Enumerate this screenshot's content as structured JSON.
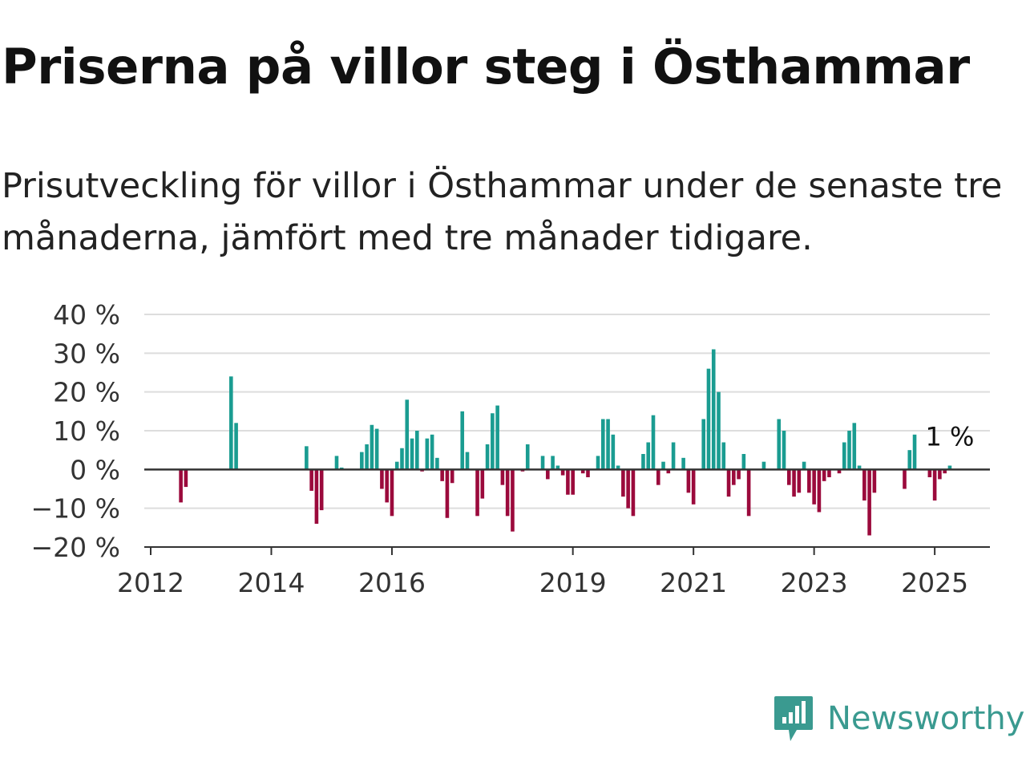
{
  "header": {
    "title": "Priserna på villor steg i Östhammar",
    "subtitle": "Prisutveckling för villor i Östhammar under de senaste tre månaderna, jämfört med tre månader tidigare."
  },
  "brand": {
    "name": "Newsworthy",
    "icon": "newsworthy-logo-icon"
  },
  "colors": {
    "positive": "#1a9c91",
    "negative": "#9b0a3c",
    "grid": "#dddddd",
    "axis": "#333333"
  },
  "chart_data": {
    "type": "bar",
    "title": "",
    "xlabel": "",
    "ylabel": "",
    "ylim": [
      -20,
      40
    ],
    "y_ticks": [
      "40 %",
      "30 %",
      "20 %",
      "10 %",
      "0 %",
      "−10 %",
      "−20 %"
    ],
    "y_tick_values": [
      40,
      30,
      20,
      10,
      0,
      -10,
      -20
    ],
    "x_ticks": [
      "2012",
      "2014",
      "2016",
      "2019",
      "2021",
      "2023",
      "2025"
    ],
    "x_tick_dates": [
      "2012-01",
      "2014-01",
      "2016-01",
      "2019-01",
      "2021-01",
      "2023-01",
      "2025-01"
    ],
    "grid": true,
    "annotation": {
      "text": "1 %",
      "date": "2025-04",
      "value": 1
    },
    "series": [
      {
        "points": [
          {
            "date": "2012-07",
            "value": -8.5
          },
          {
            "date": "2012-08",
            "value": -4.5
          },
          {
            "date": "2013-05",
            "value": 24
          },
          {
            "date": "2013-06",
            "value": 12
          },
          {
            "date": "2014-08",
            "value": 6
          },
          {
            "date": "2014-09",
            "value": -5.5
          },
          {
            "date": "2014-10",
            "value": -14
          },
          {
            "date": "2014-11",
            "value": -10.5
          },
          {
            "date": "2015-02",
            "value": 3.5
          },
          {
            "date": "2015-03",
            "value": 0.5
          },
          {
            "date": "2015-07",
            "value": 4.5
          },
          {
            "date": "2015-08",
            "value": 6.5
          },
          {
            "date": "2015-09",
            "value": 11.5
          },
          {
            "date": "2015-10",
            "value": 10.5
          },
          {
            "date": "2015-11",
            "value": -5
          },
          {
            "date": "2015-12",
            "value": -8.5
          },
          {
            "date": "2016-01",
            "value": -12
          },
          {
            "date": "2016-02",
            "value": 2
          },
          {
            "date": "2016-03",
            "value": 5.5
          },
          {
            "date": "2016-04",
            "value": 18
          },
          {
            "date": "2016-05",
            "value": 8
          },
          {
            "date": "2016-06",
            "value": 10
          },
          {
            "date": "2016-07",
            "value": -0.5
          },
          {
            "date": "2016-08",
            "value": 8
          },
          {
            "date": "2016-09",
            "value": 9
          },
          {
            "date": "2016-10",
            "value": 3
          },
          {
            "date": "2016-11",
            "value": -3
          },
          {
            "date": "2016-12",
            "value": -12.5
          },
          {
            "date": "2017-01",
            "value": -3.5
          },
          {
            "date": "2017-03",
            "value": 15
          },
          {
            "date": "2017-04",
            "value": 4.5
          },
          {
            "date": "2017-06",
            "value": -12
          },
          {
            "date": "2017-07",
            "value": -7.5
          },
          {
            "date": "2017-08",
            "value": 6.5
          },
          {
            "date": "2017-09",
            "value": 14.5
          },
          {
            "date": "2017-10",
            "value": 16.5
          },
          {
            "date": "2017-11",
            "value": -4
          },
          {
            "date": "2017-12",
            "value": -12
          },
          {
            "date": "2018-01",
            "value": -16
          },
          {
            "date": "2018-03",
            "value": -0.5
          },
          {
            "date": "2018-04",
            "value": 6.5
          },
          {
            "date": "2018-07",
            "value": 3.5
          },
          {
            "date": "2018-08",
            "value": -2.5
          },
          {
            "date": "2018-09",
            "value": 3.5
          },
          {
            "date": "2018-10",
            "value": 1
          },
          {
            "date": "2018-11",
            "value": -1.5
          },
          {
            "date": "2018-12",
            "value": -6.5
          },
          {
            "date": "2019-01",
            "value": -6.5
          },
          {
            "date": "2019-03",
            "value": -1
          },
          {
            "date": "2019-04",
            "value": -2
          },
          {
            "date": "2019-06",
            "value": 3.5
          },
          {
            "date": "2019-07",
            "value": 13
          },
          {
            "date": "2019-08",
            "value": 13
          },
          {
            "date": "2019-09",
            "value": 9
          },
          {
            "date": "2019-10",
            "value": 1
          },
          {
            "date": "2019-11",
            "value": -7
          },
          {
            "date": "2019-12",
            "value": -10
          },
          {
            "date": "2020-01",
            "value": -12
          },
          {
            "date": "2020-03",
            "value": 4
          },
          {
            "date": "2020-04",
            "value": 7
          },
          {
            "date": "2020-05",
            "value": 14
          },
          {
            "date": "2020-06",
            "value": -4
          },
          {
            "date": "2020-07",
            "value": 2
          },
          {
            "date": "2020-08",
            "value": -1
          },
          {
            "date": "2020-09",
            "value": 7
          },
          {
            "date": "2020-11",
            "value": 3
          },
          {
            "date": "2020-12",
            "value": -6
          },
          {
            "date": "2021-01",
            "value": -9
          },
          {
            "date": "2021-03",
            "value": 13
          },
          {
            "date": "2021-04",
            "value": 26
          },
          {
            "date": "2021-05",
            "value": 31
          },
          {
            "date": "2021-06",
            "value": 20
          },
          {
            "date": "2021-07",
            "value": 7
          },
          {
            "date": "2021-08",
            "value": -7
          },
          {
            "date": "2021-09",
            "value": -4
          },
          {
            "date": "2021-10",
            "value": -2.5
          },
          {
            "date": "2021-11",
            "value": 4
          },
          {
            "date": "2021-12",
            "value": -12
          },
          {
            "date": "2022-03",
            "value": 2
          },
          {
            "date": "2022-06",
            "value": 13
          },
          {
            "date": "2022-07",
            "value": 10
          },
          {
            "date": "2022-08",
            "value": -4
          },
          {
            "date": "2022-09",
            "value": -7
          },
          {
            "date": "2022-10",
            "value": -6
          },
          {
            "date": "2022-11",
            "value": 2
          },
          {
            "date": "2022-12",
            "value": -6
          },
          {
            "date": "2023-01",
            "value": -9
          },
          {
            "date": "2023-02",
            "value": -11
          },
          {
            "date": "2023-03",
            "value": -3
          },
          {
            "date": "2023-04",
            "value": -2
          },
          {
            "date": "2023-06",
            "value": -1
          },
          {
            "date": "2023-07",
            "value": 7
          },
          {
            "date": "2023-08",
            "value": 10
          },
          {
            "date": "2023-09",
            "value": 12
          },
          {
            "date": "2023-10",
            "value": 1
          },
          {
            "date": "2023-11",
            "value": -8
          },
          {
            "date": "2023-12",
            "value": -17
          },
          {
            "date": "2024-01",
            "value": -6
          },
          {
            "date": "2024-07",
            "value": -5
          },
          {
            "date": "2024-08",
            "value": 5
          },
          {
            "date": "2024-09",
            "value": 9
          },
          {
            "date": "2024-12",
            "value": -2
          },
          {
            "date": "2025-01",
            "value": -8
          },
          {
            "date": "2025-02",
            "value": -2.5
          },
          {
            "date": "2025-03",
            "value": -1
          },
          {
            "date": "2025-04",
            "value": 1
          }
        ]
      }
    ]
  }
}
